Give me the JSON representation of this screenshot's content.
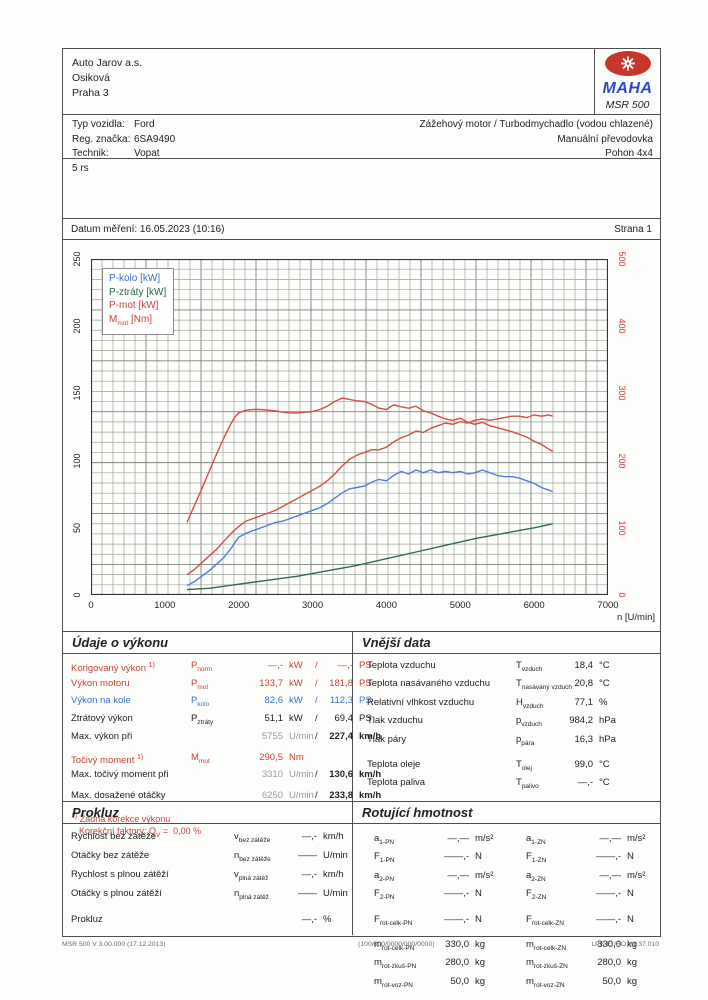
{
  "header": {
    "company": [
      "Auto Jarov a.s.",
      "Osiková",
      "Praha 3"
    ],
    "logo": {
      "brand": "MAHA",
      "model": "MSR 500"
    }
  },
  "vehicle": {
    "rows": [
      {
        "label": "Typ vozidla:",
        "value": "Ford"
      },
      {
        "label": "Reg. značka:",
        "value": "6SA9490"
      },
      {
        "label": "Technik:",
        "value": "Vopat"
      }
    ],
    "right": [
      "Zážehový motor / Turbodmychadlo (vodou chlazené)",
      "Manuální převodovka",
      "Pohon 4x4"
    ]
  },
  "note": "5 rs",
  "date_row": {
    "label": "Datum měření: 16.05.2023 (10:16)",
    "page": "Strana 1"
  },
  "chart_data": {
    "type": "line",
    "xlabel": "n [U/min]",
    "x_ticks": [
      0,
      1000,
      2000,
      3000,
      4000,
      5000,
      6000,
      7000
    ],
    "xlim": [
      0,
      7000
    ],
    "ylim_left": [
      0,
      250
    ],
    "ylim_right": [
      0,
      500
    ],
    "y_ticks_left": [
      0,
      50,
      100,
      150,
      200,
      250
    ],
    "y_ticks_right": [
      0,
      100,
      200,
      300,
      400,
      500
    ],
    "grid": "fine graph paper",
    "legend_position": "top-left",
    "legend": [
      {
        "pre": "P-kolo [kW]",
        "sub": "",
        "post": "",
        "color": "#3a6fc4"
      },
      {
        "pre": "P-ztráty [kW]",
        "sub": "",
        "post": "",
        "color": "#1f6b45"
      },
      {
        "pre": "P-mot [kW]",
        "sub": "",
        "post": "",
        "color": "#c94136"
      },
      {
        "pre": "M",
        "sub": "mot",
        "post": " [Nm]",
        "color": "#c94136"
      }
    ],
    "series": [
      {
        "name": "P-kolo [kW]",
        "axis": "left",
        "color": "#4f7fd4",
        "points": [
          [
            1300,
            7
          ],
          [
            1400,
            10
          ],
          [
            1500,
            14
          ],
          [
            1600,
            18
          ],
          [
            1700,
            23
          ],
          [
            1800,
            28
          ],
          [
            1900,
            35
          ],
          [
            2000,
            43
          ],
          [
            2100,
            46
          ],
          [
            2200,
            48
          ],
          [
            2300,
            50
          ],
          [
            2400,
            52
          ],
          [
            2500,
            54
          ],
          [
            2600,
            55
          ],
          [
            2700,
            57
          ],
          [
            2800,
            59
          ],
          [
            2900,
            61
          ],
          [
            3000,
            63
          ],
          [
            3100,
            65
          ],
          [
            3200,
            68
          ],
          [
            3300,
            72
          ],
          [
            3400,
            76
          ],
          [
            3500,
            79
          ],
          [
            3600,
            80
          ],
          [
            3700,
            81
          ],
          [
            3800,
            84
          ],
          [
            3900,
            86
          ],
          [
            4000,
            85
          ],
          [
            4100,
            89
          ],
          [
            4200,
            92
          ],
          [
            4300,
            90
          ],
          [
            4400,
            93
          ],
          [
            4500,
            91
          ],
          [
            4600,
            93
          ],
          [
            4700,
            91
          ],
          [
            4800,
            92
          ],
          [
            4900,
            91
          ],
          [
            5000,
            92
          ],
          [
            5100,
            90
          ],
          [
            5200,
            91
          ],
          [
            5300,
            93
          ],
          [
            5400,
            91
          ],
          [
            5500,
            89
          ],
          [
            5600,
            88
          ],
          [
            5700,
            88
          ],
          [
            5800,
            87
          ],
          [
            5900,
            85
          ],
          [
            6000,
            83
          ],
          [
            6100,
            80
          ],
          [
            6200,
            78
          ],
          [
            6250,
            77
          ]
        ]
      },
      {
        "name": "P-ztráty [kW]",
        "axis": "left",
        "color": "#2e6b4c",
        "points": [
          [
            1300,
            4
          ],
          [
            1600,
            5
          ],
          [
            2000,
            8
          ],
          [
            2400,
            11
          ],
          [
            2800,
            14
          ],
          [
            3200,
            18
          ],
          [
            3600,
            22
          ],
          [
            4000,
            27
          ],
          [
            4400,
            32
          ],
          [
            4800,
            37
          ],
          [
            5200,
            42
          ],
          [
            5600,
            46
          ],
          [
            6000,
            50
          ],
          [
            6250,
            53
          ]
        ]
      },
      {
        "name": "P-mot [kW]",
        "axis": "left",
        "color": "#d14f44",
        "points": [
          [
            1300,
            15
          ],
          [
            1400,
            19
          ],
          [
            1500,
            24
          ],
          [
            1600,
            29
          ],
          [
            1700,
            34
          ],
          [
            1800,
            40
          ],
          [
            1900,
            46
          ],
          [
            2000,
            51
          ],
          [
            2100,
            55
          ],
          [
            2200,
            57
          ],
          [
            2300,
            59
          ],
          [
            2400,
            61
          ],
          [
            2500,
            63
          ],
          [
            2600,
            66
          ],
          [
            2700,
            69
          ],
          [
            2800,
            72
          ],
          [
            2900,
            75
          ],
          [
            3000,
            78
          ],
          [
            3100,
            81
          ],
          [
            3200,
            85
          ],
          [
            3300,
            90
          ],
          [
            3400,
            96
          ],
          [
            3500,
            101
          ],
          [
            3600,
            104
          ],
          [
            3700,
            106
          ],
          [
            3800,
            108
          ],
          [
            3900,
            108
          ],
          [
            4000,
            110
          ],
          [
            4100,
            114
          ],
          [
            4200,
            117
          ],
          [
            4300,
            119
          ],
          [
            4400,
            122
          ],
          [
            4500,
            121
          ],
          [
            4600,
            124
          ],
          [
            4700,
            126
          ],
          [
            4800,
            128
          ],
          [
            4900,
            127
          ],
          [
            5000,
            129
          ],
          [
            5100,
            128
          ],
          [
            5200,
            130
          ],
          [
            5300,
            131
          ],
          [
            5400,
            130
          ],
          [
            5500,
            131
          ],
          [
            5600,
            132
          ],
          [
            5700,
            133
          ],
          [
            5800,
            133
          ],
          [
            5900,
            132
          ],
          [
            6000,
            134
          ],
          [
            6100,
            133
          ],
          [
            6200,
            134
          ],
          [
            6250,
            133
          ]
        ]
      },
      {
        "name": "M-mot [Nm]",
        "axis": "right",
        "color": "#d14f44",
        "points": [
          [
            1300,
            108
          ],
          [
            1400,
            133
          ],
          [
            1500,
            158
          ],
          [
            1600,
            184
          ],
          [
            1700,
            210
          ],
          [
            1800,
            234
          ],
          [
            1900,
            256
          ],
          [
            1950,
            265
          ],
          [
            2000,
            271
          ],
          [
            2100,
            275
          ],
          [
            2200,
            276
          ],
          [
            2300,
            276
          ],
          [
            2400,
            275
          ],
          [
            2500,
            274
          ],
          [
            2600,
            272
          ],
          [
            2700,
            271
          ],
          [
            2800,
            271
          ],
          [
            2900,
            272
          ],
          [
            3000,
            273
          ],
          [
            3100,
            276
          ],
          [
            3200,
            281
          ],
          [
            3300,
            288
          ],
          [
            3400,
            293
          ],
          [
            3500,
            291
          ],
          [
            3600,
            289
          ],
          [
            3700,
            288
          ],
          [
            3800,
            284
          ],
          [
            3900,
            278
          ],
          [
            4000,
            276
          ],
          [
            4100,
            283
          ],
          [
            4200,
            280
          ],
          [
            4300,
            278
          ],
          [
            4400,
            281
          ],
          [
            4500,
            274
          ],
          [
            4600,
            271
          ],
          [
            4700,
            266
          ],
          [
            4800,
            262
          ],
          [
            4900,
            260
          ],
          [
            5000,
            263
          ],
          [
            5100,
            257
          ],
          [
            5200,
            254
          ],
          [
            5300,
            257
          ],
          [
            5400,
            252
          ],
          [
            5500,
            249
          ],
          [
            5600,
            246
          ],
          [
            5700,
            243
          ],
          [
            5800,
            239
          ],
          [
            5900,
            235
          ],
          [
            6000,
            229
          ],
          [
            6100,
            224
          ],
          [
            6200,
            217
          ],
          [
            6250,
            214
          ]
        ]
      }
    ]
  },
  "udaje": {
    "title": "Údaje o výkonu",
    "rows": [
      {
        "label": "Korigovaný výkon",
        "note": "1)",
        "sym": "P",
        "sub": "norm",
        "v1": "—,-",
        "u1": "kW",
        "slash": true,
        "v2": "—,-",
        "u2": "PS",
        "cls": "red"
      },
      {
        "label": "Výkon motoru",
        "sym": "P",
        "sub": "mot",
        "v1": "133,7",
        "u1": "kW",
        "slash": true,
        "v2": "181,8",
        "u2": "PS",
        "cls": "red"
      },
      {
        "label": "Výkon na kole",
        "sym": "P",
        "sub": "kolo",
        "v1": "82,6",
        "u1": "kW",
        "slash": true,
        "v2": "112,3",
        "u2": "PS",
        "cls": "blue"
      },
      {
        "label": "Ztrátový výkon",
        "sym": "P",
        "sub": "ztráty",
        "v1": "51,1",
        "u1": "kW",
        "slash": true,
        "v2": "69,4",
        "u2": "PS",
        "cls": ""
      },
      {
        "label": "Max. výkon při",
        "sym": "",
        "sub": "",
        "v1": "5755",
        "u1": "U/min",
        "slash": true,
        "v2": "227,4",
        "u2": "km/h",
        "cls": "",
        "v1gray": true,
        "v2bold": true
      },
      {
        "label": "Točivý moment",
        "note": "1)",
        "sym": "M",
        "sub": "mot",
        "v1": "290,5",
        "u1": "Nm",
        "cls": "red",
        "gap": true
      },
      {
        "label": "Max. točivý moment při",
        "sym": "",
        "sub": "",
        "v1": "3310",
        "u1": "U/min",
        "slash": true,
        "v2": "130,6",
        "u2": "km/h",
        "cls": "",
        "v1gray": true,
        "v2bold": true
      },
      {
        "label": "Max. dosažené otáčky",
        "sym": "",
        "sub": "",
        "v1": "6250",
        "u1": "U/min",
        "slash": true,
        "v2": "233,8",
        "u2": "km/h",
        "cls": "",
        "v1gray": true,
        "v2bold": true,
        "gap": true
      }
    ],
    "footnote": {
      "note": "1)",
      "line1": "Žádná korekce výkonu",
      "line2_pre": "Korekční faktory: Q",
      "line2_sub": "V",
      "line2_post": " =",
      "line2_val": "0,00 %"
    }
  },
  "vnejsi": {
    "title": "Vnější data",
    "rows": [
      {
        "label": "Teplota vzduchu",
        "sym": "T",
        "sub": "vzduch",
        "v": "18,4",
        "u": "°C"
      },
      {
        "label": "Teplota nasávaného vzduchu",
        "sym": "T",
        "sub": "nasávaný vzduch",
        "v": "20,8",
        "u": "°C"
      },
      {
        "label": "Relativní vlhkost vzduchu",
        "sym": "H",
        "sub": "vzduch",
        "v": "77,1",
        "u": "%"
      },
      {
        "label": "Tlak vzduchu",
        "sym": "p",
        "sub": "vzduch",
        "v": "984,2",
        "u": "hPa"
      },
      {
        "label": "Tlak páry",
        "sym": "p",
        "sub": "pára",
        "v": "16,3",
        "u": "hPa"
      },
      {
        "label": "Teplota oleje",
        "sym": "T",
        "sub": "olej",
        "v": "99,0",
        "u": "°C",
        "gap": true
      },
      {
        "label": "Teplota paliva",
        "sym": "T",
        "sub": "palivo",
        "v": "—,-",
        "u": "°C"
      }
    ]
  },
  "prokluz": {
    "title": "Prokluz",
    "rows": [
      {
        "label": "Rychlost bez zátěže",
        "sym": "v",
        "sub": "bez zátěže",
        "v": "—,-",
        "u": "km/h"
      },
      {
        "label": "Otáčky bez zátěže",
        "sym": "n",
        "sub": "bez zátěže",
        "v": "——",
        "u": "U/min"
      },
      {
        "label": "Rychlost s plnou zátěží",
        "sym": "v",
        "sub": "plná zátěž",
        "v": "—,-",
        "u": "km/h"
      },
      {
        "label": "Otáčky s plnou zátěží",
        "sym": "n",
        "sub": "plná zátěž",
        "v": "——",
        "u": "U/min"
      },
      {
        "label": "Prokluz",
        "sym": "",
        "sub": "",
        "v": "—,-",
        "u": "%",
        "gap": true
      }
    ]
  },
  "rotujici": {
    "title": "Rotující hmotnost",
    "left": [
      {
        "sym": "a",
        "sub": "1-PN",
        "v": "—,—",
        "u": "m/s²"
      },
      {
        "sym": "F",
        "sub": "1-PN",
        "v": "——,-",
        "u": "N"
      },
      {
        "sym": "a",
        "sub": "2-PN",
        "v": "—,—",
        "u": "m/s²"
      },
      {
        "sym": "F",
        "sub": "2-PN",
        "v": "——,-",
        "u": "N"
      },
      {
        "sym": "F",
        "sub": "rot-celk-PN",
        "v": "——,-",
        "u": "N",
        "gap": true
      },
      {
        "sym": "m",
        "sub": "rot-celk-PN",
        "v": "330,0",
        "u": "kg",
        "gap": true
      },
      {
        "sym": "m",
        "sub": "rot-zkuš-PN",
        "v": "280,0",
        "u": "kg"
      },
      {
        "sym": "m",
        "sub": "rot-voz-PN",
        "v": "50,0",
        "u": "kg"
      }
    ],
    "right": [
      {
        "sym": "a",
        "sub": "1-ZN",
        "v": "—,—",
        "u": "m/s²"
      },
      {
        "sym": "F",
        "sub": "1-ZN",
        "v": "——,-",
        "u": "N"
      },
      {
        "sym": "a",
        "sub": "2-ZN",
        "v": "—,—",
        "u": "m/s²"
      },
      {
        "sym": "F",
        "sub": "2-ZN",
        "v": "——,-",
        "u": "N"
      },
      {
        "sym": "F",
        "sub": "rot-celk-ZN",
        "v": "——,-",
        "u": "N",
        "gap": true
      },
      {
        "sym": "m",
        "sub": "rot-celk-ZN",
        "v": "330,0",
        "u": "kg",
        "gap": true
      },
      {
        "sym": "m",
        "sub": "rot-zkuš-ZN",
        "v": "280,0",
        "u": "kg"
      },
      {
        "sym": "m",
        "sub": "rot-voz-ZN",
        "v": "50,0",
        "u": "kg"
      }
    ]
  },
  "footer": {
    "left": "MSR 500 V 3.00.000 (17.12.2013)",
    "center": "(100/000/0000/000/0000)",
    "right": "LPS-EURO V1.37.010"
  }
}
